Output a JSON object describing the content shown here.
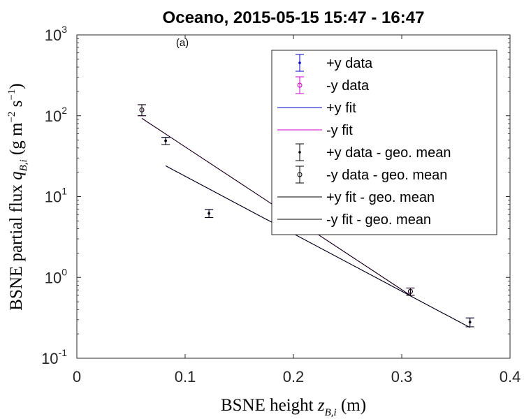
{
  "chart_data": {
    "type": "scatter",
    "title": "Oceano, 2015-05-15 15:47 - 16:47",
    "panel_label": "(a)",
    "xlabel": "BSNE height z_{B,i} (m)",
    "ylabel": "BSNE partial flux q_{B,i} (g m^{-2} s^{-1})",
    "xlim": [
      0,
      0.4
    ],
    "ylim": [
      0.1,
      1000
    ],
    "yscale": "log",
    "grid": false,
    "legend_position": "top-right",
    "x_ticks": [
      "0",
      "0.1",
      "0.2",
      "0.3",
      "0.4"
    ],
    "y_ticks": [
      {
        "base": "10",
        "exp": "-1"
      },
      {
        "base": "10",
        "exp": "0"
      },
      {
        "base": "10",
        "exp": "1"
      },
      {
        "base": "10",
        "exp": "2"
      },
      {
        "base": "10",
        "exp": "3"
      }
    ],
    "series": [
      {
        "name": "+y data",
        "kind": "errorbar",
        "marker": "dot",
        "color": "#0000cc",
        "points": [
          {
            "x": 0.082,
            "y": 49,
            "lo": 44,
            "hi": 54
          },
          {
            "x": 0.122,
            "y": 6.2,
            "lo": 5.5,
            "hi": 6.9
          },
          {
            "x": 0.363,
            "y": 0.28,
            "lo": 0.245,
            "hi": 0.315
          }
        ]
      },
      {
        "name": "-y data",
        "kind": "errorbar",
        "marker": "circle",
        "color": "#cc00cc",
        "points": [
          {
            "x": 0.06,
            "y": 118,
            "lo": 100,
            "hi": 137
          },
          {
            "x": 0.308,
            "y": 0.67,
            "lo": 0.6,
            "hi": 0.74
          }
        ]
      },
      {
        "name": "+y fit",
        "kind": "line",
        "color": "#0000cc",
        "points": [
          {
            "x": 0.082,
            "y": 24
          },
          {
            "x": 0.363,
            "y": 0.24
          }
        ]
      },
      {
        "name": "-y fit",
        "kind": "line",
        "color": "#cc00cc",
        "points": [
          {
            "x": 0.06,
            "y": 93
          },
          {
            "x": 0.308,
            "y": 0.6
          }
        ]
      },
      {
        "name": "+y data - geo. mean",
        "kind": "errorbar",
        "marker": "dot",
        "color": "#000000",
        "points": [
          {
            "x": 0.082,
            "y": 49,
            "lo": 44,
            "hi": 54
          },
          {
            "x": 0.122,
            "y": 6.2,
            "lo": 5.5,
            "hi": 6.9
          },
          {
            "x": 0.363,
            "y": 0.28,
            "lo": 0.245,
            "hi": 0.315
          }
        ]
      },
      {
        "name": "-y data - geo. mean",
        "kind": "errorbar",
        "marker": "circle",
        "color": "#000000",
        "points": [
          {
            "x": 0.06,
            "y": 118,
            "lo": 100,
            "hi": 137
          },
          {
            "x": 0.308,
            "y": 0.67,
            "lo": 0.6,
            "hi": 0.74
          }
        ]
      },
      {
        "name": "+y fit - geo. mean",
        "kind": "line",
        "color": "#000000",
        "points": [
          {
            "x": 0.082,
            "y": 24
          },
          {
            "x": 0.363,
            "y": 0.24
          }
        ]
      },
      {
        "name": "-y fit - geo. mean",
        "kind": "line",
        "color": "#000000",
        "points": [
          {
            "x": 0.06,
            "y": 93
          },
          {
            "x": 0.308,
            "y": 0.6
          }
        ]
      }
    ]
  }
}
